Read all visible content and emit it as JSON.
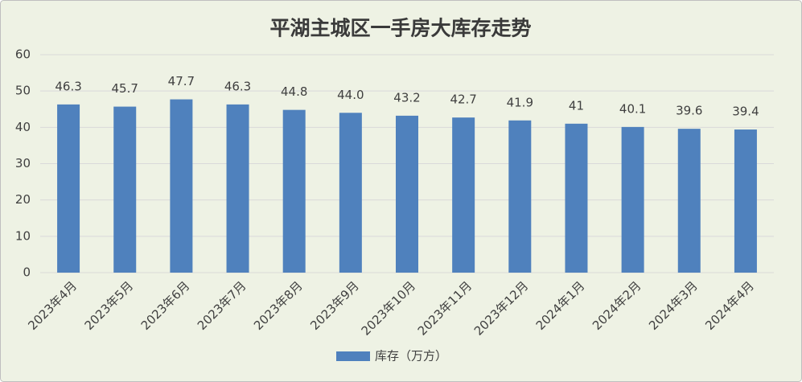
{
  "chart_data": {
    "type": "bar",
    "title": "平湖主城区一手房大库存走势",
    "categories": [
      "2023年4月",
      "2023年5月",
      "2023年6月",
      "2023年7月",
      "2023年8月",
      "2023年9月",
      "2023年10月",
      "2023年11月",
      "2023年12月",
      "2024年1月",
      "2024年2月",
      "2024年3月",
      "2024年4月"
    ],
    "series": [
      {
        "name": "库存（万方）",
        "color": "#4f81bd",
        "values": [
          46.3,
          45.7,
          47.7,
          46.3,
          44.8,
          44.0,
          43.2,
          42.7,
          41.9,
          41,
          40.1,
          39.6,
          39.4
        ],
        "value_labels": [
          "46.3",
          "45.7",
          "47.7",
          "46.3",
          "44.8",
          "44.0",
          "43.2",
          "42.7",
          "41.9",
          "41",
          "40.1",
          "39.6",
          "39.4"
        ]
      }
    ],
    "ylim": [
      0,
      60
    ],
    "yticks": [
      0,
      10,
      20,
      30,
      40,
      50,
      60
    ],
    "grid": true,
    "legend": "bottom"
  }
}
